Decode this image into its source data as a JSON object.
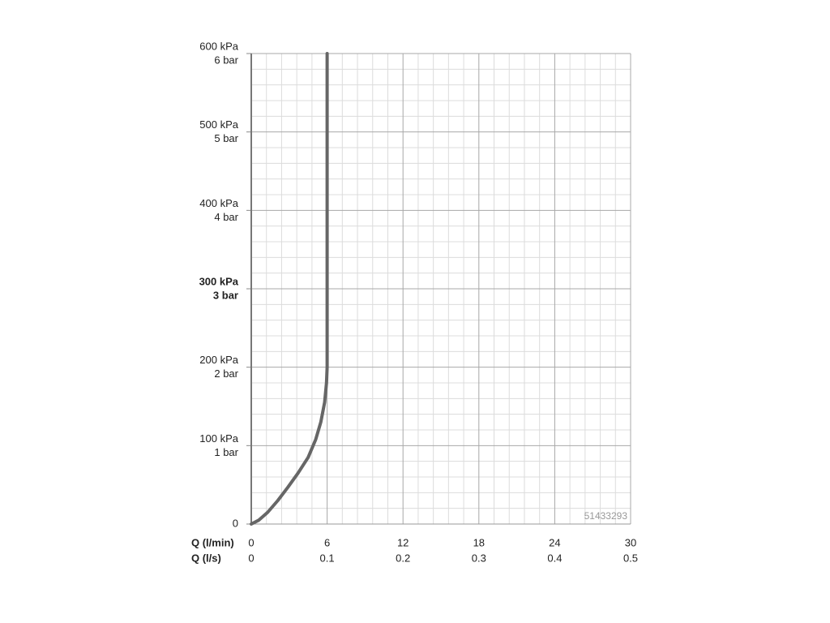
{
  "chart_data": {
    "type": "line",
    "xlabel": "Q (l/min)",
    "x2label": "Q (l/s)",
    "xlim": [
      0,
      30
    ],
    "xticks": [
      0,
      6,
      12,
      18,
      24,
      30
    ],
    "x2lim": [
      0,
      0.5
    ],
    "x2ticks": [
      0,
      0.1,
      0.2,
      0.3,
      0.4,
      0.5
    ],
    "ylim": [
      0,
      600
    ],
    "yticks": [
      0,
      {
        "value": 100,
        "label": "100 kPa"
      },
      {
        "value": 200,
        "label": "200 kPa"
      },
      {
        "value": 300,
        "label": "300 kPa"
      },
      {
        "value": 400,
        "label": "400 kPa"
      },
      {
        "value": 500,
        "label": "500 kPa"
      },
      {
        "value": 600,
        "label": "600 kPa"
      }
    ],
    "y2lim": [
      0,
      6
    ],
    "y2ticks": [
      {
        "value": 1,
        "label": "1 bar"
      },
      {
        "value": 2,
        "label": "2 bar"
      },
      {
        "value": 3,
        "label": "3 bar"
      },
      {
        "value": 4,
        "label": "4 bar"
      },
      {
        "value": 5,
        "label": "5 bar"
      },
      {
        "value": 6,
        "label": "6 bar"
      }
    ],
    "highlight_ytick": 300,
    "grid": true,
    "minor_divisions": 5,
    "watermark": "51433293",
    "series": [
      {
        "color": "#666666",
        "x": [
          0,
          0.6,
          1.3,
          2.1,
          2.9,
          3.7,
          4.5,
          5.1,
          5.5,
          5.8,
          5.95,
          6,
          6
        ],
        "values": [
          0,
          5,
          15,
          30,
          47,
          65,
          85,
          108,
          130,
          155,
          180,
          200,
          600
        ]
      }
    ]
  }
}
